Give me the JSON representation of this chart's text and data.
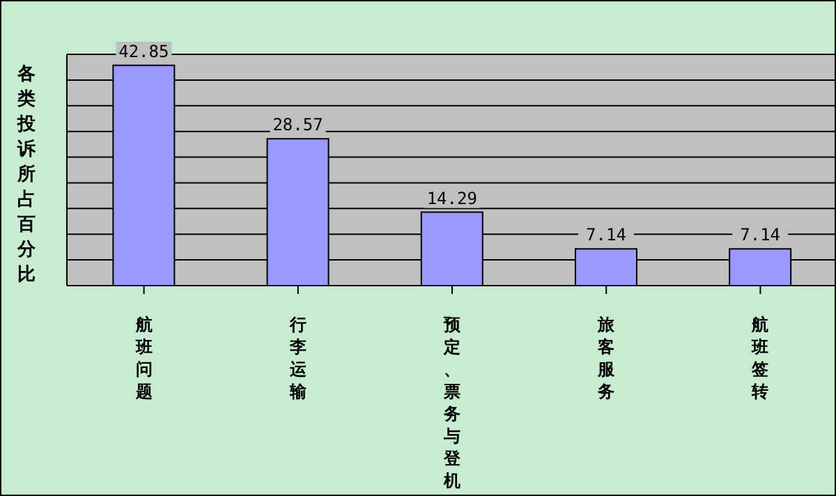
{
  "chart_data": {
    "type": "bar",
    "ylabel": "各类投诉所占百分比",
    "categories": [
      "航班问题",
      "行李运输",
      "预定、票务与登机",
      "旅客服务",
      "航班签转"
    ],
    "values": [
      42.85,
      28.57,
      14.29,
      7.14,
      7.14
    ],
    "color": "#9999ff",
    "ylim": [
      0,
      45
    ],
    "yticks": [
      {
        "value": 0,
        "label": null
      },
      {
        "value": 5,
        "label": null
      },
      {
        "value": 10,
        "label": null
      },
      {
        "value": 15,
        "label": null
      },
      {
        "value": 20,
        "label": null
      },
      {
        "value": 25,
        "label": null
      },
      {
        "value": 30,
        "label": null
      },
      {
        "value": 35,
        "label": null
      },
      {
        "value": 40,
        "label": null
      },
      {
        "value": 45,
        "label": null
      }
    ],
    "grid": "y",
    "tick_labels": "x",
    "data_labels": true,
    "legend": false
  }
}
